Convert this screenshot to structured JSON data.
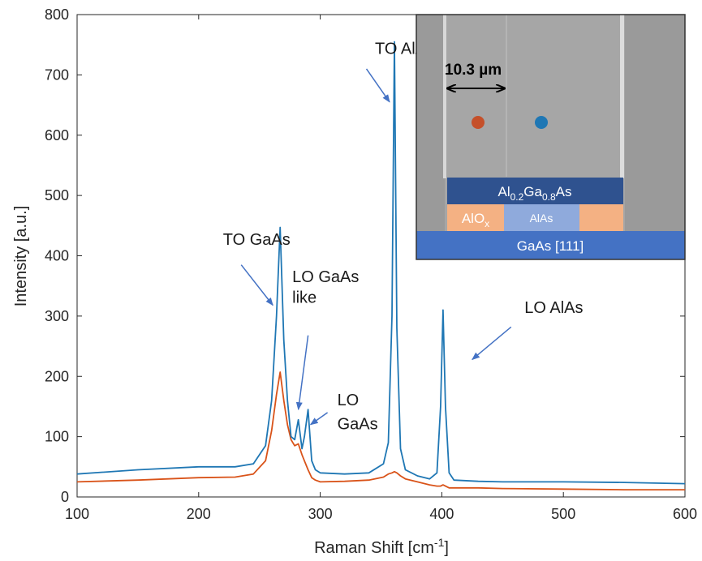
{
  "chart_data": {
    "type": "line",
    "xlabel": "Raman Shift [cm",
    "xlabel_sup": "-1",
    "xlabel_end": "]",
    "ylabel": "Intensity [a.u.]",
    "xlim": [
      100,
      600
    ],
    "ylim": [
      0,
      800
    ],
    "xticks": [
      100,
      200,
      300,
      400,
      500,
      600
    ],
    "yticks": [
      0,
      100,
      200,
      300,
      400,
      500,
      600,
      700,
      800
    ],
    "series": [
      {
        "color": "#1f77b4",
        "x": [
          100,
          150,
          200,
          230,
          245,
          255,
          260,
          264,
          267,
          270,
          273,
          276,
          279,
          282,
          285,
          287,
          290,
          293,
          296,
          300,
          320,
          340,
          352,
          356,
          359,
          361,
          363,
          366,
          370,
          380,
          390,
          396,
          399,
          401,
          403,
          406,
          410,
          430,
          450,
          500,
          550,
          600
        ],
        "y": [
          38,
          45,
          50,
          50,
          55,
          85,
          160,
          300,
          447,
          260,
          160,
          100,
          95,
          128,
          80,
          100,
          145,
          60,
          45,
          40,
          38,
          40,
          55,
          90,
          300,
          755,
          280,
          80,
          45,
          35,
          30,
          40,
          150,
          310,
          150,
          40,
          28,
          26,
          25,
          25,
          24,
          22
        ]
      },
      {
        "color": "#d95319",
        "x": [
          100,
          150,
          200,
          230,
          245,
          255,
          260,
          264,
          267,
          270,
          273,
          276,
          279,
          282,
          285,
          287,
          290,
          293,
          296,
          300,
          320,
          340,
          352,
          356,
          359,
          361,
          363,
          366,
          370,
          380,
          390,
          396,
          399,
          401,
          403,
          406,
          410,
          430,
          450,
          500,
          550,
          600
        ],
        "y": [
          25,
          28,
          32,
          33,
          38,
          60,
          110,
          170,
          207,
          160,
          120,
          95,
          85,
          88,
          70,
          60,
          45,
          32,
          28,
          25,
          26,
          28,
          33,
          38,
          40,
          42,
          40,
          35,
          30,
          25,
          20,
          18,
          18,
          20,
          18,
          15,
          15,
          15,
          14,
          13,
          12,
          12
        ]
      }
    ],
    "annotations": [
      {
        "text": "TO AlAs",
        "tx": 345,
        "ty": 735,
        "ax": 338,
        "ay": 710,
        "hx": 357,
        "hy": 655
      },
      {
        "text": "TO GaAs",
        "tx": 220,
        "ty": 418,
        "ax": 235,
        "ay": 385,
        "hx": 261,
        "hy": 318
      },
      {
        "text": "LO GaAs",
        "tx": 277,
        "ty": 356,
        "ax": 0,
        "ay": 0,
        "hx": 0,
        "hy": 0
      },
      {
        "text": "like",
        "tx": 277,
        "ty": 322,
        "ax": 290,
        "ay": 268,
        "hx": 282,
        "hy": 145
      },
      {
        "text": "LO",
        "tx": 314,
        "ty": 152,
        "ax": 0,
        "ay": 0,
        "hx": 0,
        "hy": 0
      },
      {
        "text": "GaAs",
        "tx": 314,
        "ty": 112,
        "ax": 306,
        "ay": 140,
        "hx": 292,
        "hy": 120
      },
      {
        "text": "LO AlAs",
        "tx": 468,
        "ty": 305,
        "ax": 457,
        "ay": 282,
        "hx": 425,
        "hy": 228
      }
    ]
  },
  "inset": {
    "scale_label": "10.3 µm",
    "layer_top": {
      "base": "Al",
      "sub1": "0.2",
      "mid": "Ga",
      "sub2": "0.8",
      "end": "As",
      "color": "#2f528f"
    },
    "layer_mid_left": {
      "base": "AlO",
      "sub": "x",
      "color": "#f4b183"
    },
    "layer_mid_center": {
      "text": "AlAs",
      "color": "#8faadc"
    },
    "layer_mid_right": {
      "color": "#f4b183"
    },
    "layer_bottom": {
      "text": "GaAs [111]",
      "color": "#4472c4"
    },
    "dot_left_color": "#c5502a",
    "dot_right_color": "#1f77b4"
  }
}
